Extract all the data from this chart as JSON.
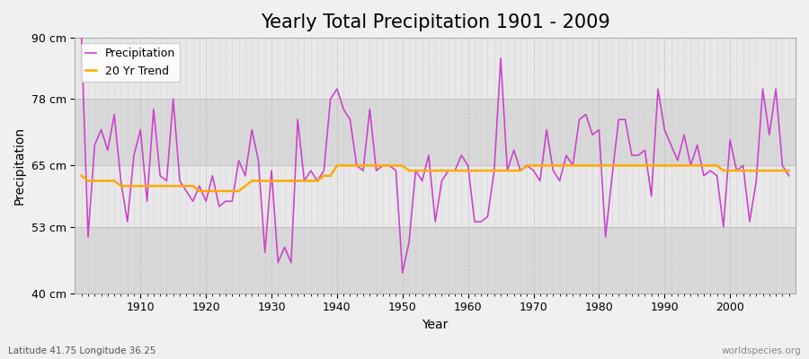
{
  "title": "Yearly Total Precipitation 1901 - 2009",
  "xlabel": "Year",
  "ylabel": "Precipitation",
  "subtitle": "Latitude 41.75 Longitude 36.25",
  "watermark": "worldspecies.org",
  "years": [
    1901,
    1902,
    1903,
    1904,
    1905,
    1906,
    1907,
    1908,
    1909,
    1910,
    1911,
    1912,
    1913,
    1914,
    1915,
    1916,
    1917,
    1918,
    1919,
    1920,
    1921,
    1922,
    1923,
    1924,
    1925,
    1926,
    1927,
    1928,
    1929,
    1930,
    1931,
    1932,
    1933,
    1934,
    1935,
    1936,
    1937,
    1938,
    1939,
    1940,
    1941,
    1942,
    1943,
    1944,
    1945,
    1946,
    1947,
    1948,
    1949,
    1950,
    1951,
    1952,
    1953,
    1954,
    1955,
    1956,
    1957,
    1958,
    1959,
    1960,
    1961,
    1962,
    1963,
    1964,
    1965,
    1966,
    1967,
    1968,
    1969,
    1970,
    1971,
    1972,
    1973,
    1974,
    1975,
    1976,
    1977,
    1978,
    1979,
    1980,
    1981,
    1982,
    1983,
    1984,
    1985,
    1986,
    1987,
    1988,
    1989,
    1990,
    1991,
    1992,
    1993,
    1994,
    1995,
    1996,
    1997,
    1998,
    1999,
    2000,
    2001,
    2002,
    2003,
    2004,
    2005,
    2006,
    2007,
    2008,
    2009
  ],
  "precipitation": [
    90,
    51,
    69,
    72,
    68,
    75,
    62,
    54,
    67,
    72,
    58,
    76,
    63,
    62,
    78,
    62,
    60,
    58,
    61,
    58,
    63,
    57,
    58,
    58,
    66,
    63,
    72,
    66,
    48,
    64,
    46,
    49,
    46,
    74,
    62,
    64,
    62,
    64,
    78,
    80,
    76,
    74,
    65,
    64,
    76,
    64,
    65,
    65,
    64,
    44,
    50,
    64,
    62,
    67,
    54,
    62,
    64,
    64,
    67,
    65,
    54,
    54,
    55,
    64,
    86,
    64,
    68,
    64,
    65,
    64,
    62,
    72,
    64,
    62,
    67,
    65,
    74,
    75,
    71,
    72,
    51,
    63,
    74,
    74,
    67,
    67,
    68,
    59,
    80,
    72,
    69,
    66,
    71,
    65,
    69,
    63,
    64,
    63,
    53,
    70,
    64,
    65,
    54,
    62,
    80,
    71,
    80,
    65,
    63
  ],
  "trend": [
    63,
    62,
    62,
    62,
    62,
    62,
    61,
    61,
    61,
    61,
    61,
    61,
    61,
    61,
    61,
    61,
    61,
    61,
    60,
    60,
    60,
    60,
    60,
    60,
    60,
    61,
    62,
    62,
    62,
    62,
    62,
    62,
    62,
    62,
    62,
    62,
    62,
    63,
    63,
    65,
    65,
    65,
    65,
    65,
    65,
    65,
    65,
    65,
    65,
    65,
    64,
    64,
    64,
    64,
    64,
    64,
    64,
    64,
    64,
    64,
    64,
    64,
    64,
    64,
    64,
    64,
    64,
    64,
    65,
    65,
    65,
    65,
    65,
    65,
    65,
    65,
    65,
    65,
    65,
    65,
    65,
    65,
    65,
    65,
    65,
    65,
    65,
    65,
    65,
    65,
    65,
    65,
    65,
    65,
    65,
    65,
    65,
    65,
    64,
    64,
    64,
    64,
    64,
    64,
    64,
    64,
    64,
    64,
    64
  ],
  "precip_color": "#cc44cc",
  "trend_color": "#ffaa00",
  "fig_bg_color": "#f0f0f0",
  "plot_bg_color_light": "#e8e8e8",
  "plot_bg_color_dark": "#d8d8d8",
  "grid_color": "#ffffff",
  "ylim": [
    40,
    90
  ],
  "yticks": [
    40,
    53,
    65,
    78,
    90
  ],
  "ytick_labels": [
    "40 cm",
    "53 cm",
    "65 cm",
    "78 cm",
    "90 cm"
  ],
  "xlim": [
    1900,
    2010
  ],
  "title_fontsize": 15,
  "axis_fontsize": 9,
  "legend_fontsize": 9,
  "band_ranges": [
    [
      40,
      53
    ],
    [
      65,
      78
    ]
  ],
  "band_color": "#d8d8d8"
}
